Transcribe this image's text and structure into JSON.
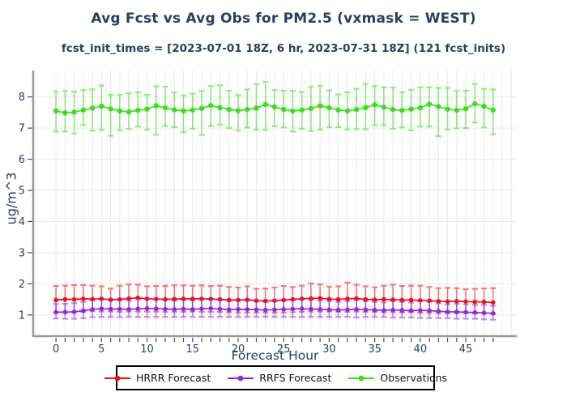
{
  "header": {
    "title": "Avg Fcst vs Avg Obs for PM2.5 (vxmask = WEST)",
    "subtitle": "fcst_init_times = [2023-07-01 18Z, 6 hr, 2023-07-31 18Z] (121 fcst_inits)",
    "text_color": "#2a3f5f"
  },
  "chart_data": {
    "type": "line",
    "title": "Avg Fcst vs Avg Obs for PM2.5 (vxmask = WEST)",
    "subtitle": "fcst_init_times = [2023-07-01 18Z, 6 hr, 2023-07-31 18Z] (121 fcst_inits)",
    "xlabel": "Forecast Hour",
    "ylabel": "ug/m^3",
    "grid": true,
    "legend_position": "bottom",
    "xlim": [
      -2.5,
      50.6
    ],
    "ylim": [
      0.32,
      8.85
    ],
    "xticks": [
      0,
      5,
      10,
      15,
      20,
      25,
      30,
      35,
      40,
      45
    ],
    "yticks": [
      1,
      2,
      3,
      4,
      5,
      6,
      7,
      8
    ],
    "x": [
      0,
      1,
      2,
      3,
      4,
      5,
      6,
      7,
      8,
      9,
      10,
      11,
      12,
      13,
      14,
      15,
      16,
      17,
      18,
      19,
      20,
      21,
      22,
      23,
      24,
      25,
      26,
      27,
      28,
      29,
      30,
      31,
      32,
      33,
      34,
      35,
      36,
      37,
      38,
      39,
      40,
      41,
      42,
      43,
      44,
      45,
      46,
      47,
      48
    ],
    "series": [
      {
        "name": "HRRR Forecast",
        "color": "#ee1111",
        "values": [
          1.48,
          1.5,
          1.5,
          1.52,
          1.51,
          1.52,
          1.49,
          1.5,
          1.53,
          1.55,
          1.52,
          1.51,
          1.5,
          1.51,
          1.52,
          1.52,
          1.52,
          1.51,
          1.5,
          1.48,
          1.48,
          1.49,
          1.46,
          1.45,
          1.46,
          1.48,
          1.5,
          1.52,
          1.53,
          1.54,
          1.51,
          1.5,
          1.52,
          1.53,
          1.5,
          1.49,
          1.5,
          1.49,
          1.48,
          1.48,
          1.47,
          1.46,
          1.44,
          1.43,
          1.44,
          1.43,
          1.42,
          1.42,
          1.4
        ],
        "err_minus": [
          0.4,
          0.41,
          0.4,
          0.42,
          0.39,
          0.41,
          0.38,
          0.4,
          0.42,
          0.44,
          0.41,
          0.4,
          0.4,
          0.41,
          0.42,
          0.41,
          0.42,
          0.41,
          0.4,
          0.39,
          0.4,
          0.41,
          0.38,
          0.37,
          0.38,
          0.4,
          0.41,
          0.42,
          0.42,
          0.43,
          0.4,
          0.4,
          0.42,
          0.42,
          0.4,
          0.39,
          0.41,
          0.4,
          0.4,
          0.39,
          0.4,
          0.39,
          0.38,
          0.37,
          0.38,
          0.37,
          0.37,
          0.36,
          0.36
        ],
        "err_plus": [
          0.45,
          0.44,
          0.46,
          0.44,
          0.43,
          0.4,
          0.36,
          0.44,
          0.45,
          0.42,
          0.4,
          0.42,
          0.43,
          0.44,
          0.43,
          0.42,
          0.43,
          0.42,
          0.44,
          0.42,
          0.4,
          0.43,
          0.38,
          0.4,
          0.42,
          0.45,
          0.4,
          0.42,
          0.48,
          0.44,
          0.4,
          0.42,
          0.52,
          0.44,
          0.42,
          0.4,
          0.44,
          0.48,
          0.45,
          0.46,
          0.47,
          0.44,
          0.42,
          0.44,
          0.42,
          0.4,
          0.42,
          0.43,
          0.46
        ]
      },
      {
        "name": "RRFS Forecast",
        "color": "#8a2be2",
        "values": [
          1.09,
          1.09,
          1.1,
          1.14,
          1.18,
          1.2,
          1.19,
          1.19,
          1.18,
          1.2,
          1.21,
          1.2,
          1.19,
          1.18,
          1.19,
          1.18,
          1.2,
          1.21,
          1.19,
          1.17,
          1.18,
          1.18,
          1.17,
          1.16,
          1.17,
          1.18,
          1.19,
          1.2,
          1.19,
          1.18,
          1.17,
          1.16,
          1.17,
          1.18,
          1.17,
          1.16,
          1.15,
          1.16,
          1.15,
          1.14,
          1.15,
          1.14,
          1.12,
          1.1,
          1.1,
          1.09,
          1.08,
          1.07,
          1.05
        ],
        "err_minus": [
          0.2,
          0.21,
          0.22,
          0.24,
          0.25,
          0.26,
          0.25,
          0.26,
          0.24,
          0.26,
          0.27,
          0.26,
          0.25,
          0.24,
          0.25,
          0.24,
          0.26,
          0.27,
          0.25,
          0.23,
          0.24,
          0.24,
          0.23,
          0.22,
          0.23,
          0.24,
          0.25,
          0.26,
          0.25,
          0.24,
          0.23,
          0.22,
          0.23,
          0.26,
          0.23,
          0.22,
          0.21,
          0.24,
          0.23,
          0.22,
          0.25,
          0.24,
          0.22,
          0.2,
          0.22,
          0.21,
          0.2,
          0.21,
          0.2
        ],
        "err_plus": [
          0.26,
          0.27,
          0.28,
          0.28,
          0.29,
          0.3,
          0.28,
          0.29,
          0.28,
          0.3,
          0.31,
          0.3,
          0.29,
          0.28,
          0.29,
          0.28,
          0.3,
          0.31,
          0.29,
          0.27,
          0.28,
          0.28,
          0.27,
          0.26,
          0.27,
          0.28,
          0.29,
          0.3,
          0.29,
          0.28,
          0.27,
          0.26,
          0.27,
          0.3,
          0.27,
          0.26,
          0.25,
          0.28,
          0.27,
          0.26,
          0.29,
          0.28,
          0.26,
          0.24,
          0.26,
          0.25,
          0.24,
          0.25,
          0.24
        ]
      },
      {
        "name": "Observations",
        "color": "#3ddc21",
        "values": [
          7.55,
          7.49,
          7.51,
          7.58,
          7.64,
          7.7,
          7.62,
          7.55,
          7.52,
          7.57,
          7.61,
          7.72,
          7.65,
          7.59,
          7.55,
          7.58,
          7.63,
          7.73,
          7.66,
          7.6,
          7.56,
          7.6,
          7.64,
          7.76,
          7.68,
          7.6,
          7.55,
          7.58,
          7.63,
          7.72,
          7.65,
          7.58,
          7.55,
          7.6,
          7.66,
          7.75,
          7.67,
          7.6,
          7.57,
          7.61,
          7.65,
          7.77,
          7.69,
          7.61,
          7.57,
          7.62,
          7.78,
          7.7,
          7.58
        ],
        "err_minus": [
          0.66,
          0.6,
          0.68,
          0.48,
          0.72,
          0.76,
          0.87,
          0.62,
          0.55,
          0.52,
          0.66,
          0.93,
          0.58,
          0.56,
          0.68,
          0.6,
          0.85,
          0.66,
          0.55,
          0.6,
          0.64,
          0.58,
          0.7,
          0.82,
          0.62,
          0.58,
          0.66,
          0.6,
          0.72,
          0.78,
          0.62,
          0.55,
          0.6,
          0.64,
          0.7,
          0.66,
          0.58,
          0.62,
          0.55,
          0.68,
          0.6,
          0.72,
          0.95,
          0.66,
          0.58,
          0.62,
          0.6,
          0.68,
          0.78
        ],
        "err_plus": [
          0.62,
          0.7,
          0.66,
          0.64,
          0.6,
          0.67,
          0.45,
          0.52,
          0.6,
          0.58,
          0.46,
          0.62,
          0.68,
          0.55,
          0.5,
          0.52,
          0.56,
          0.62,
          0.72,
          0.6,
          0.5,
          0.64,
          0.77,
          0.72,
          0.54,
          0.6,
          0.65,
          0.58,
          0.7,
          0.64,
          0.56,
          0.5,
          0.6,
          0.66,
          0.76,
          0.6,
          0.64,
          0.7,
          0.58,
          0.62,
          0.66,
          0.54,
          0.6,
          0.68,
          0.62,
          0.58,
          0.64,
          0.56,
          0.66
        ]
      }
    ]
  }
}
